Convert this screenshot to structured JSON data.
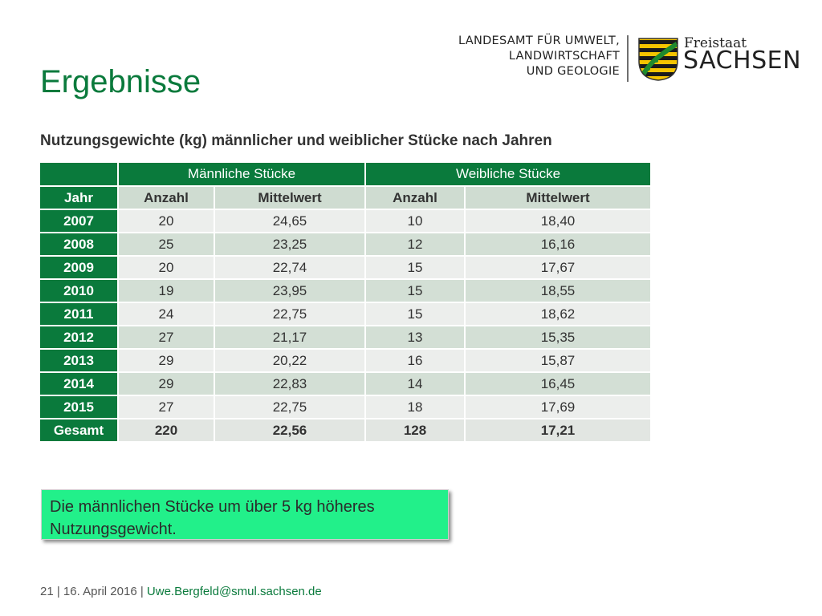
{
  "slide": {
    "title": "Ergebnisse",
    "subtitle": "Nutzungsgewichte (kg) männlicher und weiblicher Stücke nach Jahren"
  },
  "logo": {
    "org_lines": [
      "LANDESAMT FÜR UMWELT,",
      "LANDWIRTSCHAFT",
      "UND GEOLOGIE"
    ],
    "freistaat": "Freistaat",
    "sachsen": "SACHSEN"
  },
  "table": {
    "group_headers": [
      "Männliche Stücke",
      "Weibliche Stücke"
    ],
    "columns": [
      "Jahr",
      "Anzahl",
      "Mittelwert",
      "Anzahl",
      "Mittelwert"
    ],
    "rows": [
      [
        "2007",
        "20",
        "24,65",
        "10",
        "18,40"
      ],
      [
        "2008",
        "25",
        "23,25",
        "12",
        "16,16"
      ],
      [
        "2009",
        "20",
        "22,74",
        "15",
        "17,67"
      ],
      [
        "2010",
        "19",
        "23,95",
        "15",
        "18,55"
      ],
      [
        "2011",
        "24",
        "22,75",
        "15",
        "18,62"
      ],
      [
        "2012",
        "27",
        "21,17",
        "13",
        "15,35"
      ],
      [
        "2013",
        "29",
        "20,22",
        "16",
        "15,87"
      ],
      [
        "2014",
        "29",
        "22,83",
        "14",
        "16,45"
      ],
      [
        "2015",
        "27",
        "22,75",
        "18",
        "17,69"
      ]
    ],
    "total": [
      "Gesamt",
      "220",
      "22,56",
      "128",
      "17,21"
    ]
  },
  "note": {
    "text": "Die männlichen Stücke um über 5 kg höheres Nutzungsgewicht."
  },
  "footer": {
    "page": "21",
    "sep1": " | ",
    "date": "16. April 2016",
    "sep2": " | ",
    "email": "Uwe.Bergfeld@smul.sachsen.de"
  },
  "colors": {
    "brand_green": "#0a7a3c",
    "note_green": "#22f08a",
    "row_light": "#eceeec",
    "row_dark": "#d3dfd5"
  },
  "icons": {
    "coat_of_arms": "saxony-coat-of-arms-icon"
  }
}
